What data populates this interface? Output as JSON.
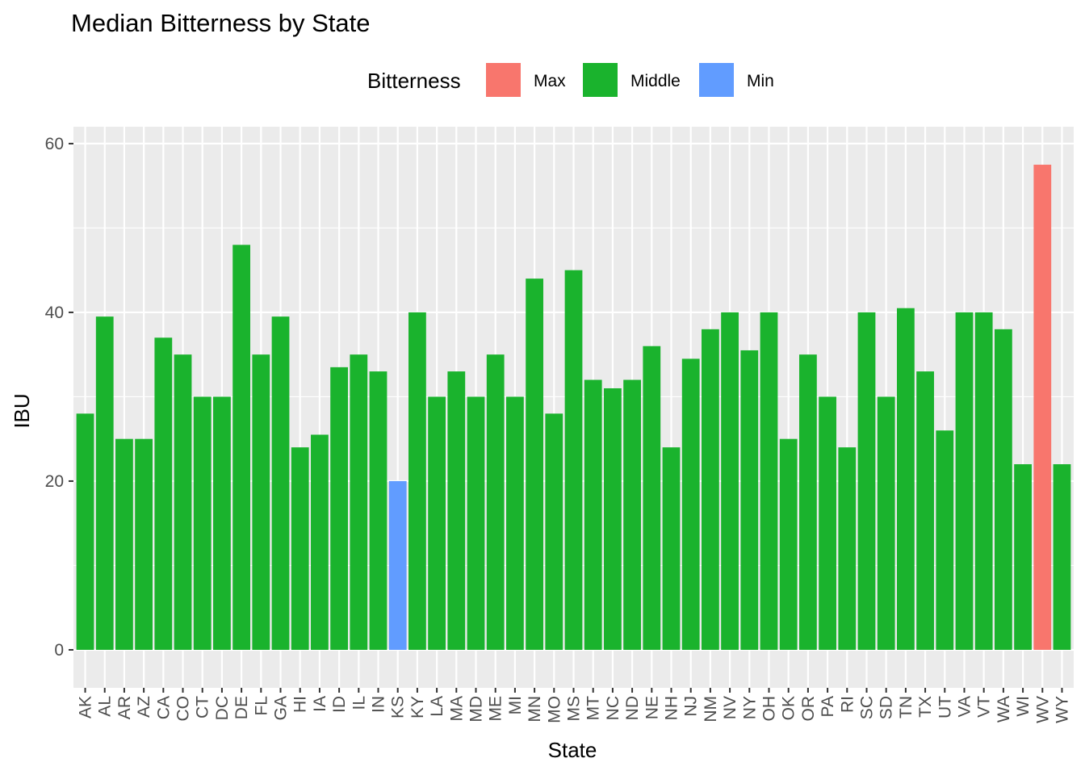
{
  "chart_data": {
    "type": "bar",
    "title": "Median Bitterness by State",
    "xlabel": "State",
    "ylabel": "IBU",
    "ylim": [
      -4.5,
      62
    ],
    "yticks": [
      0,
      20,
      40,
      60
    ],
    "grid": true,
    "legend": {
      "title": "Bitterness",
      "placement": "top",
      "entries": [
        {
          "name": "Max",
          "color": "#F8766D"
        },
        {
          "name": "Middle",
          "color": "#1AB32D"
        },
        {
          "name": "Min",
          "color": "#619CFF"
        }
      ]
    },
    "categories": [
      "AK",
      "AL",
      "AR",
      "AZ",
      "CA",
      "CO",
      "CT",
      "DC",
      "DE",
      "FL",
      "GA",
      "HI",
      "IA",
      "ID",
      "IL",
      "IN",
      "KS",
      "KY",
      "LA",
      "MA",
      "MD",
      "ME",
      "MI",
      "MN",
      "MO",
      "MS",
      "MT",
      "NC",
      "ND",
      "NE",
      "NH",
      "NJ",
      "NM",
      "NV",
      "NY",
      "OH",
      "OK",
      "OR",
      "PA",
      "RI",
      "SC",
      "SD",
      "TN",
      "TX",
      "UT",
      "VA",
      "VT",
      "WA",
      "WI",
      "WV",
      "WY"
    ],
    "values": [
      28,
      39.5,
      25,
      25,
      37,
      35,
      30,
      30,
      48,
      35,
      39.5,
      24,
      25.5,
      33.5,
      35,
      33,
      20,
      40,
      30,
      33,
      30,
      35,
      30,
      44,
      28,
      45,
      32,
      31,
      32,
      36,
      24,
      34.5,
      38,
      40,
      35.5,
      40,
      25,
      35,
      30,
      24,
      40,
      30,
      40.5,
      33,
      26,
      40,
      40,
      38,
      22,
      57.5,
      22
    ],
    "groups": [
      "Middle",
      "Middle",
      "Middle",
      "Middle",
      "Middle",
      "Middle",
      "Middle",
      "Middle",
      "Middle",
      "Middle",
      "Middle",
      "Middle",
      "Middle",
      "Middle",
      "Middle",
      "Middle",
      "Min",
      "Middle",
      "Middle",
      "Middle",
      "Middle",
      "Middle",
      "Middle",
      "Middle",
      "Middle",
      "Middle",
      "Middle",
      "Middle",
      "Middle",
      "Middle",
      "Middle",
      "Middle",
      "Middle",
      "Middle",
      "Middle",
      "Middle",
      "Middle",
      "Middle",
      "Middle",
      "Middle",
      "Middle",
      "Middle",
      "Middle",
      "Middle",
      "Middle",
      "Middle",
      "Middle",
      "Middle",
      "Middle",
      "Max",
      "Middle"
    ]
  }
}
